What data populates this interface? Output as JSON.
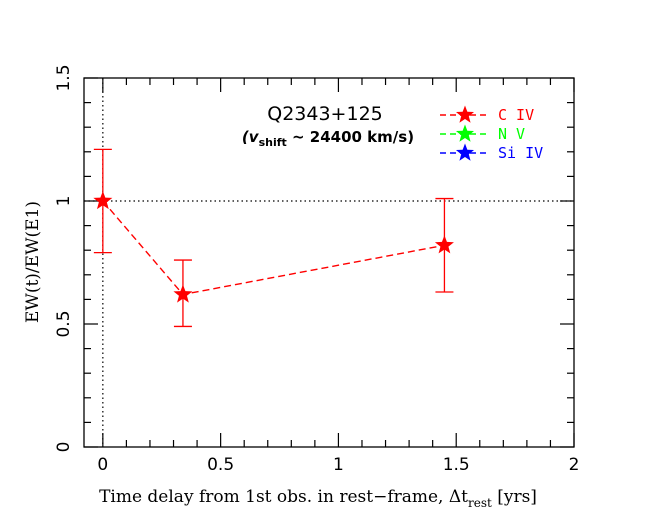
{
  "chart_data": {
    "type": "scatter",
    "title": "Q2343+125",
    "subtitle_prefix": "(v",
    "subtitle_sub": "shift",
    "subtitle_suffix": " ~ 24400 km/s)",
    "xlabel": "Time delay from 1st obs. in rest−frame, Δt",
    "xlabel_sub": "rest",
    "xlabel_suffix": " [yrs]",
    "ylabel": "EW(t)/EW(E1)",
    "xlim": [
      -0.08,
      2.0
    ],
    "ylim": [
      0,
      1.5
    ],
    "x_ticks": [
      0,
      0.5,
      1,
      1.5,
      2
    ],
    "x_tick_labels": [
      "0",
      "0.5",
      "1",
      "1.5",
      "2"
    ],
    "y_ticks": [
      0,
      0.5,
      1,
      1.5
    ],
    "y_tick_labels": [
      "0",
      "0.5",
      "1",
      "1.5"
    ],
    "reference_lines": {
      "horizontal_y": 1,
      "vertical_x": 0,
      "style": "dotted"
    },
    "series": [
      {
        "name": "C IV",
        "color": "#ff0000",
        "x": [
          0,
          0.34,
          1.45
        ],
        "y": [
          1.0,
          0.62,
          0.82
        ],
        "err_lower": [
          0.79,
          0.49,
          0.63
        ],
        "err_upper": [
          1.21,
          0.76,
          1.01
        ]
      }
    ],
    "legend": {
      "position": "top-right",
      "entries": [
        {
          "label": "C IV",
          "color": "#ff0000"
        },
        {
          "label": "N V",
          "color": "#00ff00"
        },
        {
          "label": "Si IV",
          "color": "#0000ff"
        }
      ]
    }
  }
}
